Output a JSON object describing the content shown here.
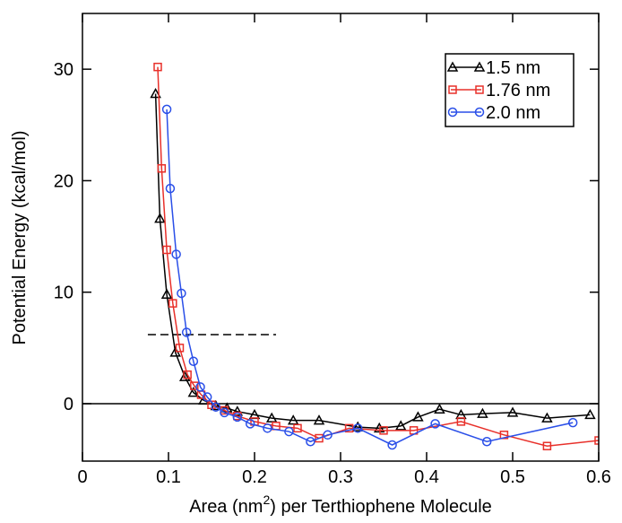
{
  "chart_data": {
    "type": "line",
    "y_label": "Potential Energy (kcal/mol)",
    "x_label": [
      "Area (nm",
      "2",
      ") per Terthiophene Molecule"
    ],
    "xlim": [
      0,
      0.6
    ],
    "xticks": [
      0,
      0.1,
      0.2,
      0.3,
      0.4,
      0.5,
      0.6
    ],
    "ylim": [
      -5.15,
      35
    ],
    "yticks": [
      0,
      10,
      20,
      30
    ],
    "zero_line": 0,
    "reference_line": {
      "x": [
        0.076,
        0.225
      ],
      "y": 6.2
    },
    "legend": "upper right",
    "series": [
      {
        "name": "1.5 nm",
        "color": "#000000",
        "marker": "triangle",
        "x": [
          0.085,
          0.09,
          0.098,
          0.108,
          0.119,
          0.129,
          0.141,
          0.155,
          0.168,
          0.18,
          0.2,
          0.22,
          0.245,
          0.275,
          0.32,
          0.345,
          0.37,
          0.39,
          0.415,
          0.44,
          0.465,
          0.5,
          0.54,
          0.59
        ],
        "values": [
          27.8,
          16.6,
          9.8,
          4.6,
          2.4,
          1.0,
          0.3,
          -0.2,
          -0.4,
          -0.7,
          -1.0,
          -1.3,
          -1.5,
          -1.5,
          -2.1,
          -2.2,
          -2.0,
          -1.2,
          -0.5,
          -1.0,
          -0.9,
          -0.8,
          -1.3,
          -1.0
        ]
      },
      {
        "name": "1.76 nm",
        "color": "#e8302a",
        "marker": "square",
        "x": [
          0.0875,
          0.092,
          0.098,
          0.105,
          0.113,
          0.122,
          0.13,
          0.138,
          0.15,
          0.165,
          0.18,
          0.2,
          0.225,
          0.25,
          0.275,
          0.31,
          0.35,
          0.385,
          0.44,
          0.49,
          0.54,
          0.6
        ],
        "values": [
          30.2,
          21.1,
          13.8,
          9.0,
          5.0,
          2.6,
          1.6,
          0.8,
          -0.1,
          -0.6,
          -1.1,
          -1.6,
          -2.0,
          -2.2,
          -3.1,
          -2.2,
          -2.4,
          -2.4,
          -1.6,
          -2.8,
          -3.8,
          -3.3
        ]
      },
      {
        "name": "2.0 nm",
        "color": "#2a4fe8",
        "marker": "circle",
        "x": [
          0.098,
          0.102,
          0.109,
          0.115,
          0.121,
          0.129,
          0.137,
          0.145,
          0.155,
          0.165,
          0.18,
          0.195,
          0.215,
          0.24,
          0.265,
          0.285,
          0.32,
          0.36,
          0.41,
          0.47,
          0.57
        ],
        "values": [
          26.4,
          19.3,
          13.4,
          9.9,
          6.4,
          3.8,
          1.5,
          0.6,
          -0.3,
          -0.8,
          -1.2,
          -1.8,
          -2.2,
          -2.5,
          -3.4,
          -2.8,
          -2.2,
          -3.7,
          -1.8,
          -3.4,
          -1.7
        ]
      }
    ]
  }
}
